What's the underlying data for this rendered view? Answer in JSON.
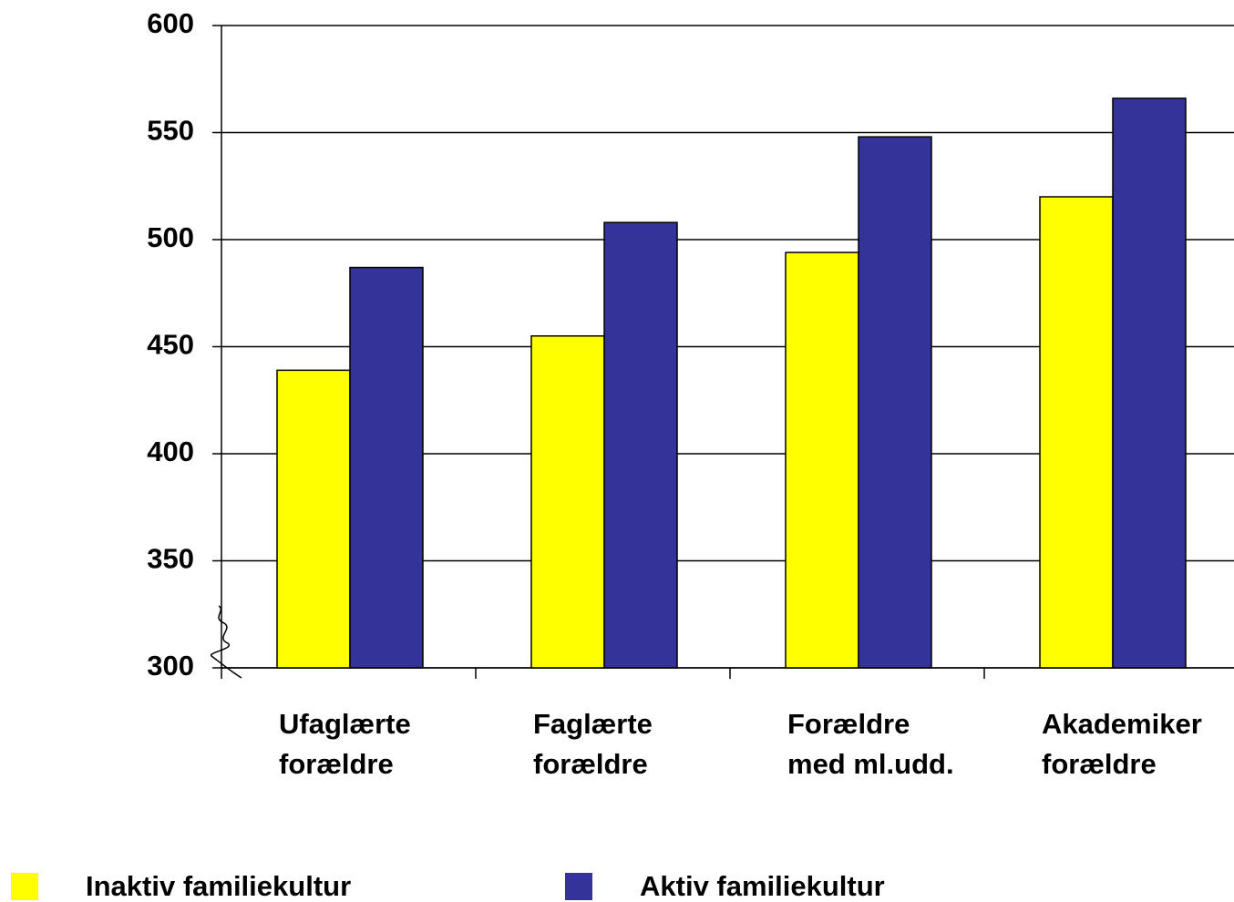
{
  "chart_data": {
    "type": "bar",
    "categories": [
      [
        "Ufaglærte",
        "forældre"
      ],
      [
        "Faglærte",
        "forældre"
      ],
      [
        "Forældre",
        "med ml.udd."
      ],
      [
        "Akademiker",
        "forældre"
      ]
    ],
    "series": [
      {
        "name": "Inaktiv familiekultur",
        "color": "#ffff00",
        "values": [
          439,
          455,
          494,
          520
        ]
      },
      {
        "name": "Aktiv familiekultur",
        "color": "#333399",
        "values": [
          487,
          508,
          548,
          566
        ]
      }
    ],
    "ylim": [
      300,
      600
    ],
    "yticks": [
      300,
      350,
      400,
      450,
      500,
      550,
      600
    ],
    "grid": true
  }
}
